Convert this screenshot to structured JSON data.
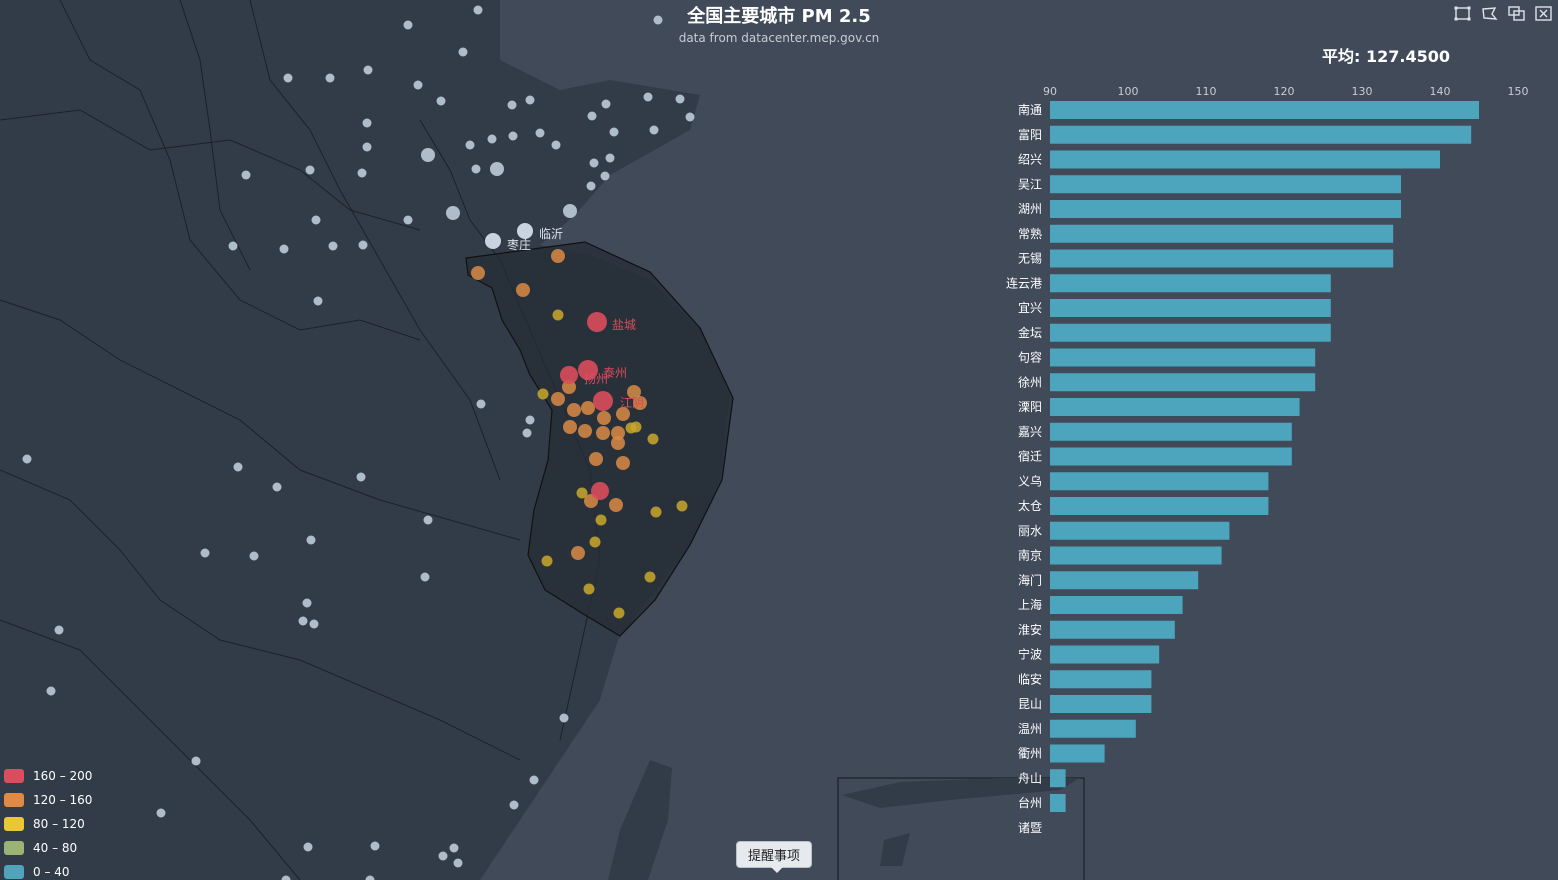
{
  "title": "全国主要城市 PM 2.5",
  "subtitle": "data from datacenter.mep.gov.cn",
  "average_label": "平均: 127.4500",
  "toolbox": {
    "icons": [
      "zoom-select-icon",
      "lasso-select-icon",
      "keep-select-icon",
      "clear-select-icon"
    ]
  },
  "tooltip_button": "提醒事项",
  "legend": {
    "items": [
      {
        "label": "160 – 200",
        "color": "#d94e5d"
      },
      {
        "label": "120 – 160",
        "color": "#eac736"
      },
      {
        "label": "80 – 120",
        "color": "#e6c137"
      },
      {
        "label": "40 – 80",
        "color": "#9bb375"
      },
      {
        "label": "0 – 40",
        "color": "#50a3ba"
      }
    ]
  },
  "colors": {
    "background": "#404a59",
    "land": "#323c48",
    "region_border": "#111111",
    "bar": "#4da5bd",
    "unselected_point": "#bccbd8",
    "high": "#d94e5d",
    "mid": "#d98a45",
    "low": "#c9a72b"
  },
  "map": {
    "city_labels": [
      {
        "name": "枣庄",
        "color": "#dfe3ea"
      },
      {
        "name": "临沂",
        "color": "#dfe3ea"
      },
      {
        "name": "盐城",
        "color": "#d94e5d"
      },
      {
        "name": "泰州",
        "color": "#d94e5d"
      },
      {
        "name": "扬州",
        "color": "#d94e5d"
      },
      {
        "name": "江阴",
        "color": "#d94e5d"
      }
    ]
  },
  "chart_data": {
    "type": "bar",
    "orientation": "horizontal",
    "xlim": [
      90,
      150
    ],
    "xticks": [
      90,
      100,
      110,
      120,
      130,
      140,
      150
    ],
    "categories": [
      "南通",
      "富阳",
      "绍兴",
      "吴江",
      "湖州",
      "常熟",
      "无锡",
      "连云港",
      "宜兴",
      "金坛",
      "句容",
      "徐州",
      "溧阳",
      "嘉兴",
      "宿迁",
      "义乌",
      "太仓",
      "丽水",
      "南京",
      "海门",
      "上海",
      "淮安",
      "宁波",
      "临安",
      "昆山",
      "温州",
      "衢州",
      "舟山",
      "台州",
      "诸暨"
    ],
    "values": [
      145,
      144,
      140,
      135,
      135,
      134,
      134,
      126,
      126,
      126,
      124,
      124,
      122,
      121,
      121,
      118,
      118,
      113,
      112,
      109,
      107,
      106,
      104,
      103,
      103,
      101,
      97,
      92,
      92,
      90
    ]
  }
}
